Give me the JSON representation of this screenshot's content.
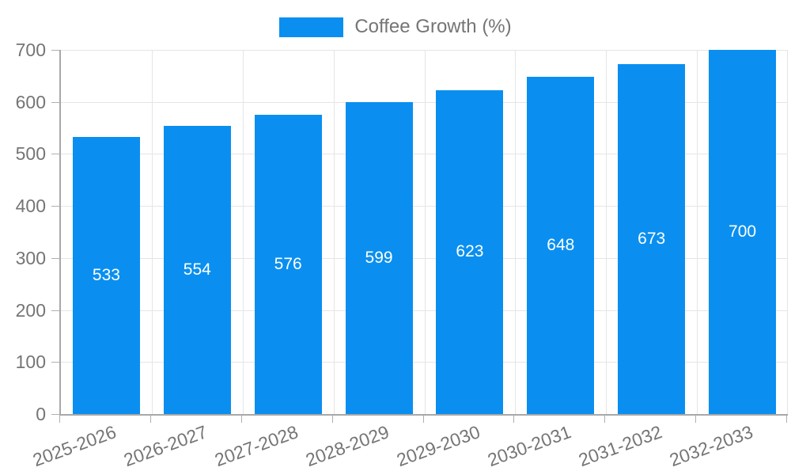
{
  "chart_data": {
    "type": "bar",
    "title": "",
    "legend": "Coffee Growth (%)",
    "categories": [
      "2025-2026",
      "2026-2027",
      "2027-2028",
      "2028-2029",
      "2029-2030",
      "2030-2031",
      "2031-2032",
      "2032-2033"
    ],
    "values": [
      533,
      554,
      576,
      599,
      623,
      648,
      673,
      700
    ],
    "xlabel": "",
    "ylabel": "",
    "ylim": [
      0,
      700
    ],
    "yticks": [
      0,
      100,
      200,
      300,
      400,
      500,
      600,
      700
    ],
    "grid": true,
    "legend_position": "top-center",
    "value_label_position": "inside-center",
    "x_tick_rotation_deg": -20
  },
  "colors": {
    "bar": "#0a8ff0",
    "grid": "#e5e5e5",
    "axis": "#a8a8a8",
    "tick_mark": "#b0b0b0",
    "tick_text": "#757575",
    "value_text": "#ffffff",
    "background": "#ffffff"
  }
}
